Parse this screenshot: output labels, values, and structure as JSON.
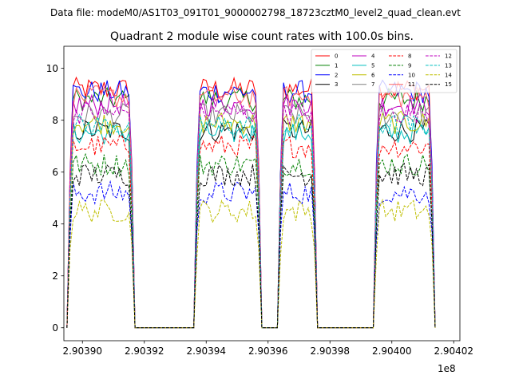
{
  "chart_data": {
    "type": "line",
    "suptitle": "Data file: modeM0/AS1T03_091T01_9000002798_18723cztM0_level2_quad_clean.evt",
    "title": "Quadrant 2 module wise count rates with 100.0s bins.",
    "xlabel": "",
    "ylabel": "",
    "offset_text": "1e8",
    "xlim": [
      290389.4,
      290402.2
    ],
    "ylim": [
      -0.5,
      10.85
    ],
    "x_unit_note": "x values in units of 1e3 s (tick label 2.90390 x 1e8)",
    "x_ticks": [
      290390,
      290392,
      290394,
      290396,
      290398,
      290400,
      290402
    ],
    "x_tick_labels": [
      "2.90390",
      "2.90392",
      "2.90394",
      "2.90396",
      "2.90398",
      "2.90400",
      "2.90402"
    ],
    "y_ticks": [
      0,
      2,
      4,
      6,
      8,
      10
    ],
    "y_tick_labels": [
      "0",
      "2",
      "4",
      "6",
      "8",
      "10"
    ],
    "legend_position": "top-right",
    "active_segments": [
      {
        "start": 290389.5,
        "end": 290391.7
      },
      {
        "start": 290393.6,
        "end": 290395.8
      },
      {
        "start": 290396.3,
        "end": 290397.6
      },
      {
        "start": 290399.4,
        "end": 290401.4
      }
    ],
    "series": [
      {
        "name": "0",
        "color": "#ff0000",
        "dash": "solid",
        "level": 9.2
      },
      {
        "name": "1",
        "color": "#008000",
        "dash": "solid",
        "level": 8.8
      },
      {
        "name": "2",
        "color": "#0000ff",
        "dash": "solid",
        "level": 9.1
      },
      {
        "name": "3",
        "color": "#000000",
        "dash": "solid",
        "level": 7.6
      },
      {
        "name": "4",
        "color": "#bf00bf",
        "dash": "solid",
        "level": 8.6
      },
      {
        "name": "5",
        "color": "#00bfbf",
        "dash": "solid",
        "level": 7.5
      },
      {
        "name": "6",
        "color": "#bfbf00",
        "dash": "solid",
        "level": 7.9
      },
      {
        "name": "7",
        "color": "#808080",
        "dash": "solid",
        "level": 8.2
      },
      {
        "name": "8",
        "color": "#ff0000",
        "dash": "dashed",
        "level": 7.0
      },
      {
        "name": "9",
        "color": "#008000",
        "dash": "dashed",
        "level": 6.3
      },
      {
        "name": "10",
        "color": "#0000ff",
        "dash": "dashed",
        "level": 5.2
      },
      {
        "name": "11",
        "color": "#ff6666",
        "dash": "solid",
        "level": 8.9
      },
      {
        "name": "12",
        "color": "#bf00bf",
        "dash": "dashed",
        "level": 8.3
      },
      {
        "name": "13",
        "color": "#00bfbf",
        "dash": "dashed",
        "level": 7.8
      },
      {
        "name": "14",
        "color": "#bfbf00",
        "dash": "dashed",
        "level": 4.5
      },
      {
        "name": "15",
        "color": "#000000",
        "dash": "dashed",
        "level": 5.9
      }
    ]
  }
}
